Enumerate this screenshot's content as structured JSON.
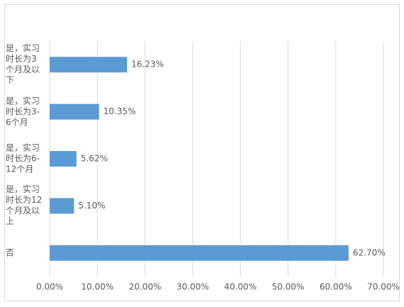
{
  "chart_data": {
    "type": "bar",
    "orientation": "horizontal",
    "categories": [
      "是，实习时长为3个月及以下",
      "是，实习时长为3-6个月",
      "是，实习时长为6-12个月",
      "是，实习时长为12个月及以上",
      "否"
    ],
    "values": [
      16.23,
      10.35,
      5.62,
      5.1,
      62.7
    ],
    "value_labels": [
      "16.23%",
      "10.35%",
      "5.62%",
      "5.10%",
      "62.70%"
    ],
    "color": "#5b9bd5",
    "xlim": [
      0,
      70
    ],
    "xticks": [
      {
        "value": 0,
        "label": "0.00%"
      },
      {
        "value": 10,
        "label": "10.00%"
      },
      {
        "value": 20,
        "label": "20.00%"
      },
      {
        "value": 30,
        "label": "30.00%"
      },
      {
        "value": 40,
        "label": "40.00%"
      },
      {
        "value": 50,
        "label": "50.00%"
      },
      {
        "value": 60,
        "label": "60.00%"
      },
      {
        "value": 70,
        "label": "70.00%"
      }
    ],
    "grid": true
  }
}
